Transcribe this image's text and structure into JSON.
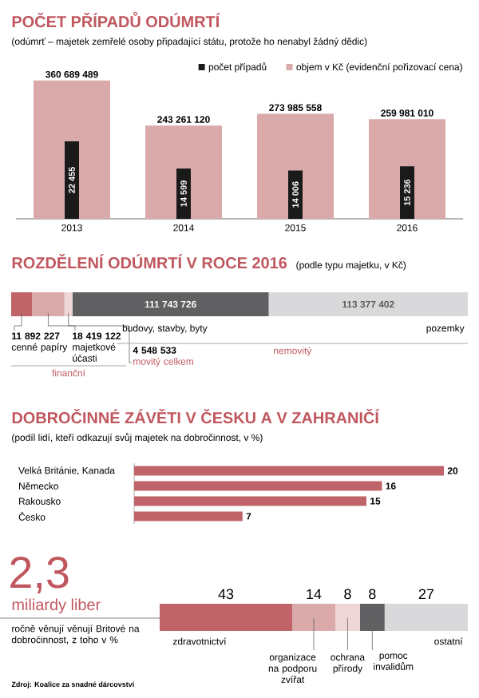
{
  "chart_data": [
    {
      "type": "bar",
      "title": "POČET PŘÍPADŮ ODÚMRTÍ",
      "subtitle": "(odúmrť – majetek zemřelé osoby připadající státu, protože ho nenabyl žádný dědic)",
      "categories": [
        "2013",
        "2014",
        "2015",
        "2016"
      ],
      "legend": "top right",
      "series": [
        {
          "name": "objem v Kč (evidenční pořizovací cena)",
          "color": "#d9aaa9",
          "values": [
            360689489,
            243261120,
            273985558,
            259981010
          ],
          "value_labels": [
            "360 689 489",
            "243 261 120",
            "273 985 558",
            "259 981 010"
          ]
        },
        {
          "name": "počet případů",
          "color": "#1a1a1a",
          "axis": "y2",
          "values": [
            22455,
            14599,
            14006,
            15236
          ],
          "value_labels": [
            "22 455",
            "14 599",
            "14 006",
            "15 236"
          ]
        }
      ]
    },
    {
      "type": "bar",
      "orientation": "horizontal",
      "stacked": true,
      "title": "ROZDĚLENÍ ODÚMRTÍ V ROCE 2016",
      "subtitle": "(podle typu majetku, v Kč)",
      "categories": [
        null
      ],
      "annotations": [
        "finanční",
        "nemovitý"
      ],
      "series": [
        {
          "name": "cenné papíry",
          "color": "#c0646a",
          "values": [
            11892227
          ],
          "value_labels": [
            "11 892 227"
          ]
        },
        {
          "name": "majetkové účasti",
          "color": "#d9aaa9",
          "values": [
            18419122
          ],
          "value_labels": [
            "18 419 122"
          ]
        },
        {
          "name": "movitý celkem",
          "color": "#efd6d6",
          "values": [
            4548533
          ],
          "value_labels": [
            "4 548 533"
          ]
        },
        {
          "name": "budovy, stavby, byty",
          "color": "#606062",
          "values": [
            111743726
          ],
          "value_labels": [
            "111 743 726"
          ]
        },
        {
          "name": "pozemky",
          "color": "#d9d9db",
          "values": [
            113377402
          ],
          "value_labels": [
            "113 377 402"
          ]
        }
      ]
    },
    {
      "type": "bar",
      "orientation": "horizontal",
      "title": "DOBROČINNÉ ZÁVĚTI V ČESKU A V ZAHRANIČÍ",
      "subtitle": "(podíl lidí, kteří odkazují svůj majetek na dobročinnost, v %)",
      "categories": [
        "Velká Británie, Kanada",
        "Německo",
        "Rakousko",
        "Česko"
      ],
      "values": [
        20,
        16,
        15,
        7
      ],
      "color": "#c0646a",
      "data_labels": true
    },
    {
      "type": "bar",
      "orientation": "horizontal",
      "stacked": true,
      "title": "2,3",
      "subtitle": "miliardy liber",
      "categories": [
        null
      ],
      "data_labels": true,
      "annotations": [
        "ročně věnují věnují Britové na dobročinnost, z toho v %",
        "Zdroj: Koalice za snadné dárcovství"
      ],
      "series": [
        {
          "name": "zdravotnictví",
          "color": "#c0646a",
          "values": [
            43
          ]
        },
        {
          "name": "organizace na podporu zvířat",
          "color": "#d9aaa9",
          "values": [
            14
          ]
        },
        {
          "name": "ochrana přírody",
          "color": "#efd6d6",
          "values": [
            8
          ]
        },
        {
          "name": "pomoc invalidům",
          "color": "#606062",
          "values": [
            8
          ]
        },
        {
          "name": "ostatní",
          "color": "#d9d9db",
          "values": [
            27
          ]
        }
      ]
    }
  ]
}
